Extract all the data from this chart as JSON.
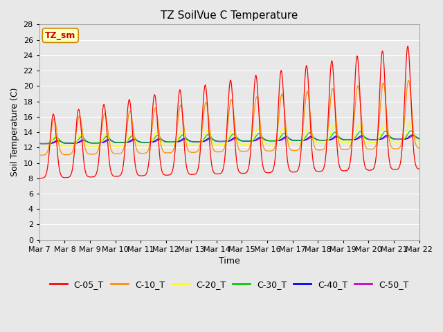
{
  "title": "TZ SoilVue C Temperature",
  "xlabel": "Time",
  "ylabel": "Soil Temperature (C)",
  "annotation": "TZ_sm",
  "ylim": [
    0,
    28
  ],
  "yticks": [
    0,
    2,
    4,
    6,
    8,
    10,
    12,
    14,
    16,
    18,
    20,
    22,
    24,
    26,
    28
  ],
  "xtick_labels": [
    "Mar 7",
    "Mar 8",
    "Mar 9",
    "Mar 10",
    "Mar 11",
    "Mar 12",
    "Mar 13",
    "Mar 14",
    "Mar 15",
    "Mar 16",
    "Mar 17",
    "Mar 18",
    "Mar 19",
    "Mar 20",
    "Mar 21",
    "Mar 22"
  ],
  "series_colors": {
    "C-05_T": "#ff0000",
    "C-10_T": "#ff8c00",
    "C-20_T": "#ffff00",
    "C-30_T": "#00cc00",
    "C-40_T": "#0000ff",
    "C-50_T": "#cc00cc"
  },
  "bg_color": "#e8e8e8",
  "plot_bg_color": "#e8e8e8",
  "grid_color": "#ffffff",
  "title_fontsize": 11,
  "axis_label_fontsize": 9,
  "tick_fontsize": 8,
  "legend_fontsize": 9,
  "days": 15,
  "pts_per_day": 144
}
